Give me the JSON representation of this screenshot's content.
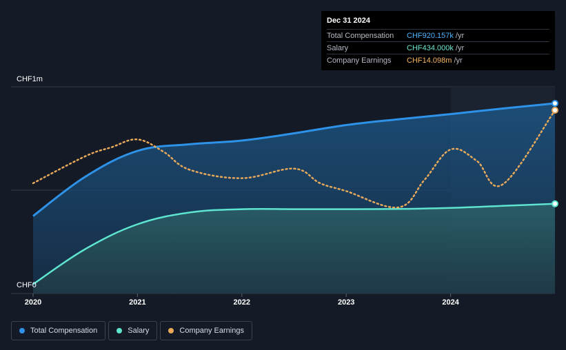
{
  "tooltip": {
    "date": "Dec 31 2024",
    "rows": [
      {
        "label": "Total Compensation",
        "value": "CHF920.157k",
        "unit": " /yr",
        "color": "#4fb3ff"
      },
      {
        "label": "Salary",
        "value": "CHF434.000k",
        "unit": " /yr",
        "color": "#6de8d0"
      },
      {
        "label": "Company Earnings",
        "value": "CHF14.098m",
        "unit": " /yr",
        "color": "#f5b562"
      }
    ]
  },
  "legend": [
    {
      "label": "Total Compensation",
      "color": "#2e93e8"
    },
    {
      "label": "Salary",
      "color": "#5ee5cf"
    },
    {
      "label": "Company Earnings",
      "color": "#e8a95a"
    }
  ],
  "chart_data": {
    "type": "line",
    "y_tick_labels": [
      "CHF1m",
      "CHF0"
    ],
    "x_tick_labels": [
      "2020",
      "2021",
      "2022",
      "2023",
      "2024"
    ],
    "ylim": [
      0,
      1000000
    ],
    "xlim": [
      2020.0,
      2025.0
    ],
    "highlight_start": 2024.0,
    "grid": true,
    "series": [
      {
        "name": "Total Compensation",
        "color": "#2e93e8",
        "style": "area",
        "points": [
          [
            2020.0,
            375000
          ],
          [
            2020.5,
            565000
          ],
          [
            2021.0,
            690000
          ],
          [
            2021.5,
            722000
          ],
          [
            2022.0,
            740000
          ],
          [
            2022.5,
            775000
          ],
          [
            2023.0,
            815000
          ],
          [
            2023.5,
            843000
          ],
          [
            2024.0,
            868000
          ],
          [
            2024.5,
            895000
          ],
          [
            2025.0,
            920157
          ]
        ]
      },
      {
        "name": "Salary",
        "color": "#5ee5cf",
        "style": "area",
        "points": [
          [
            2020.0,
            45000
          ],
          [
            2020.5,
            215000
          ],
          [
            2021.0,
            335000
          ],
          [
            2021.5,
            392000
          ],
          [
            2022.0,
            408000
          ],
          [
            2022.5,
            408000
          ],
          [
            2023.0,
            408000
          ],
          [
            2023.5,
            409000
          ],
          [
            2024.0,
            414000
          ],
          [
            2024.5,
            424000
          ],
          [
            2025.0,
            434000
          ]
        ]
      },
      {
        "name": "Company Earnings",
        "color": "#e8a95a",
        "style": "dotted",
        "scale_note": "right",
        "points": [
          [
            2020.0,
            7600000
          ],
          [
            2020.5,
            10000000
          ],
          [
            2020.75,
            10800000
          ],
          [
            2021.0,
            11500000
          ],
          [
            2021.25,
            10400000
          ],
          [
            2021.5,
            8800000
          ],
          [
            2022.0,
            8050000
          ],
          [
            2022.5,
            8900000
          ],
          [
            2022.75,
            7600000
          ],
          [
            2023.0,
            6900000
          ],
          [
            2023.5,
            5450000
          ],
          [
            2023.75,
            7900000
          ],
          [
            2024.0,
            10600000
          ],
          [
            2024.25,
            9600000
          ],
          [
            2024.5,
            7500000
          ],
          [
            2025.0,
            14098000
          ]
        ]
      }
    ]
  }
}
